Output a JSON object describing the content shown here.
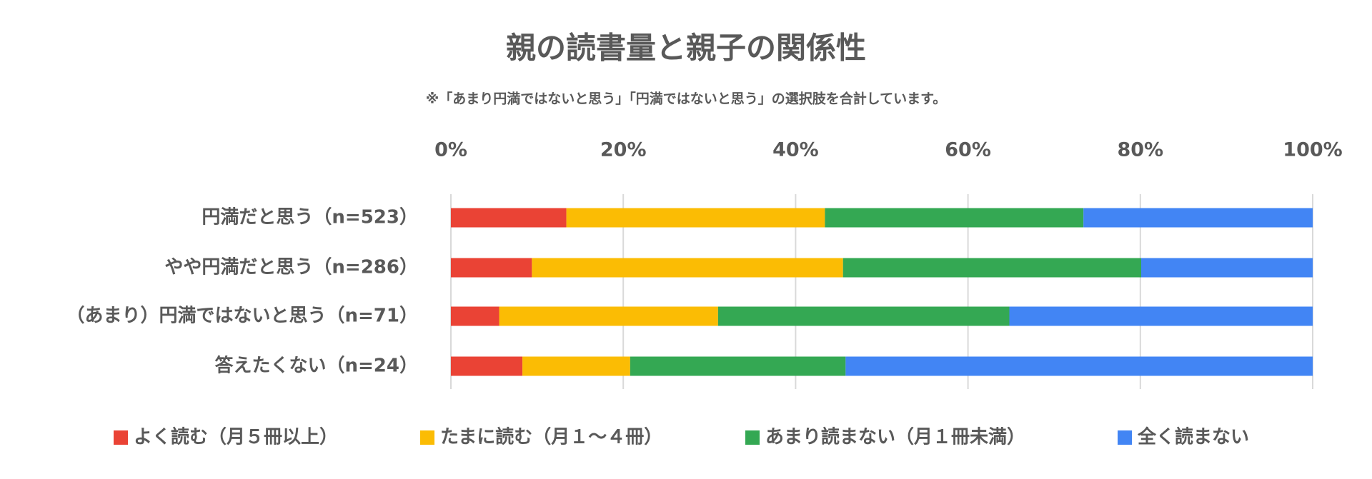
{
  "chart_data": {
    "type": "stacked-bar-horizontal",
    "title": "親の読書量と親子の関係性",
    "subtitle": "※「あまり円満ではないと思う」「円満ではないと思う」の選択肢を合計しています。",
    "categories": [
      "円満だと思う（n=523）",
      "やや円満だと思う（n=286）",
      "（あまり）円満ではないと思う（n=71）",
      "答えたくない（n=24）"
    ],
    "series": [
      {
        "name": "よく読む（月５冊以上）",
        "color": "#ea4335",
        "values": [
          13.4,
          9.4,
          5.6,
          8.3
        ]
      },
      {
        "name": "たまに読む（月１～４冊）",
        "color": "#fbbc04",
        "values": [
          30.0,
          36.1,
          25.4,
          12.5
        ]
      },
      {
        "name": "あまり読まない（月１冊未満）",
        "color": "#34a853",
        "values": [
          30.0,
          34.6,
          33.8,
          25.0
        ]
      },
      {
        "name": "全く読まない",
        "color": "#4285f4",
        "values": [
          26.6,
          19.9,
          35.2,
          54.2
        ]
      }
    ],
    "xlim": [
      0,
      100
    ],
    "xticks": [
      {
        "value": 0,
        "label": "0%"
      },
      {
        "value": 20,
        "label": "20%"
      },
      {
        "value": 40,
        "label": "40%"
      },
      {
        "value": 60,
        "label": "60%"
      },
      {
        "value": 80,
        "label": "80%"
      },
      {
        "value": 100,
        "label": "100%"
      }
    ],
    "grid": true
  }
}
